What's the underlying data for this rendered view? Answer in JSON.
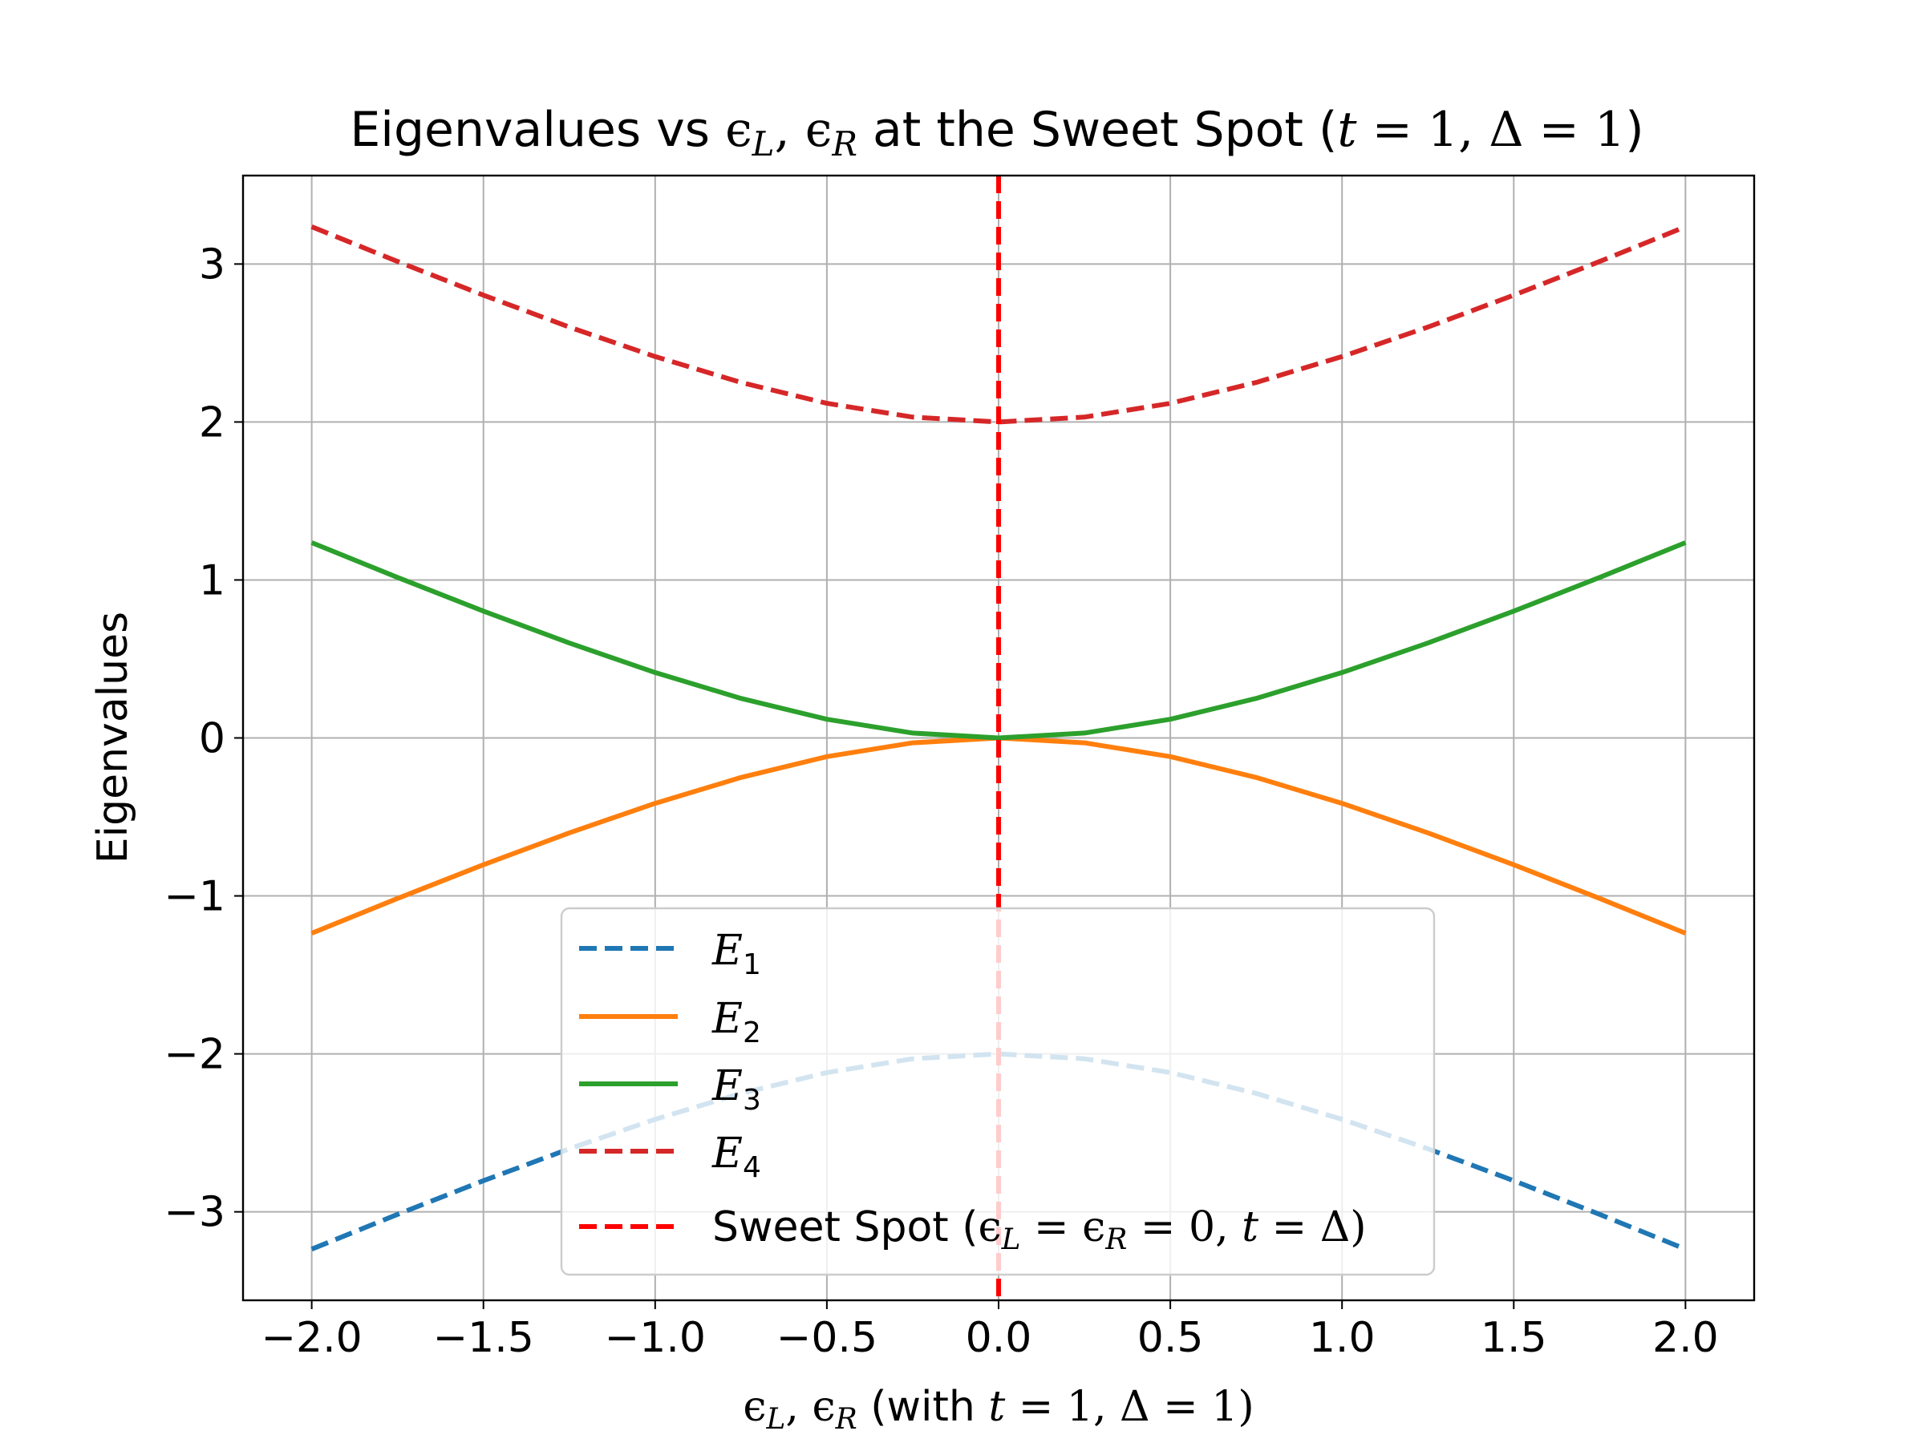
{
  "chart_data": {
    "type": "line",
    "title": {
      "prefix": "Eigenvalues vs ",
      "mid": " at the Sweet Spot (",
      "suffix": ")"
    },
    "xlabel": {
      "suffix": " (with "
    },
    "ylabel": "Eigenvalues",
    "xlim": [
      -2.2,
      2.2
    ],
    "ylim": [
      -3.56,
      3.56
    ],
    "x_ticks": [
      -2.0,
      -1.5,
      -1.0,
      -0.5,
      0.0,
      0.5,
      1.0,
      1.5,
      2.0
    ],
    "x_tick_labels": [
      "−2.0",
      "−1.5",
      "−1.0",
      "−0.5",
      "0.0",
      "0.5",
      "1.0",
      "1.5",
      "2.0"
    ],
    "y_ticks": [
      -3,
      -2,
      -1,
      0,
      1,
      2,
      3
    ],
    "y_tick_labels": [
      "−3",
      "−2",
      "−1",
      "0",
      "1",
      "2",
      "3"
    ],
    "grid": true,
    "legend_position": "lower-center",
    "x": [
      -2.0,
      -1.75,
      -1.5,
      -1.25,
      -1.0,
      -0.75,
      -0.5,
      -0.25,
      0.0,
      0.25,
      0.5,
      0.75,
      1.0,
      1.25,
      1.5,
      1.75,
      2.0
    ],
    "series": [
      {
        "name": "E1",
        "color": "#1f77b4",
        "dash": true,
        "values": [
          -3.236,
          -3.016,
          -2.803,
          -2.601,
          -2.414,
          -2.25,
          -2.118,
          -2.031,
          -2.0,
          -2.031,
          -2.118,
          -2.25,
          -2.414,
          -2.601,
          -2.803,
          -3.016,
          -3.236
        ]
      },
      {
        "name": "E2",
        "color": "#ff7f0e",
        "dash": false,
        "values": [
          -1.236,
          -1.016,
          -0.803,
          -0.601,
          -0.414,
          -0.25,
          -0.118,
          -0.031,
          0.0,
          -0.031,
          -0.118,
          -0.25,
          -0.414,
          -0.601,
          -0.803,
          -1.016,
          -1.236
        ]
      },
      {
        "name": "E3",
        "color": "#2ca02c",
        "dash": false,
        "values": [
          1.236,
          1.016,
          0.803,
          0.601,
          0.414,
          0.25,
          0.118,
          0.031,
          0.0,
          0.031,
          0.118,
          0.25,
          0.414,
          0.601,
          0.803,
          1.016,
          1.236
        ]
      },
      {
        "name": "E4",
        "color": "#d62728",
        "dash": true,
        "values": [
          3.236,
          3.016,
          2.803,
          2.601,
          2.414,
          2.25,
          2.118,
          2.031,
          2.0,
          2.031,
          2.118,
          2.25,
          2.414,
          2.601,
          2.803,
          3.016,
          3.236
        ]
      }
    ],
    "vline": {
      "x": 0.0,
      "color": "#ff0000",
      "label_prefix": "Sweet Spot ("
    }
  }
}
